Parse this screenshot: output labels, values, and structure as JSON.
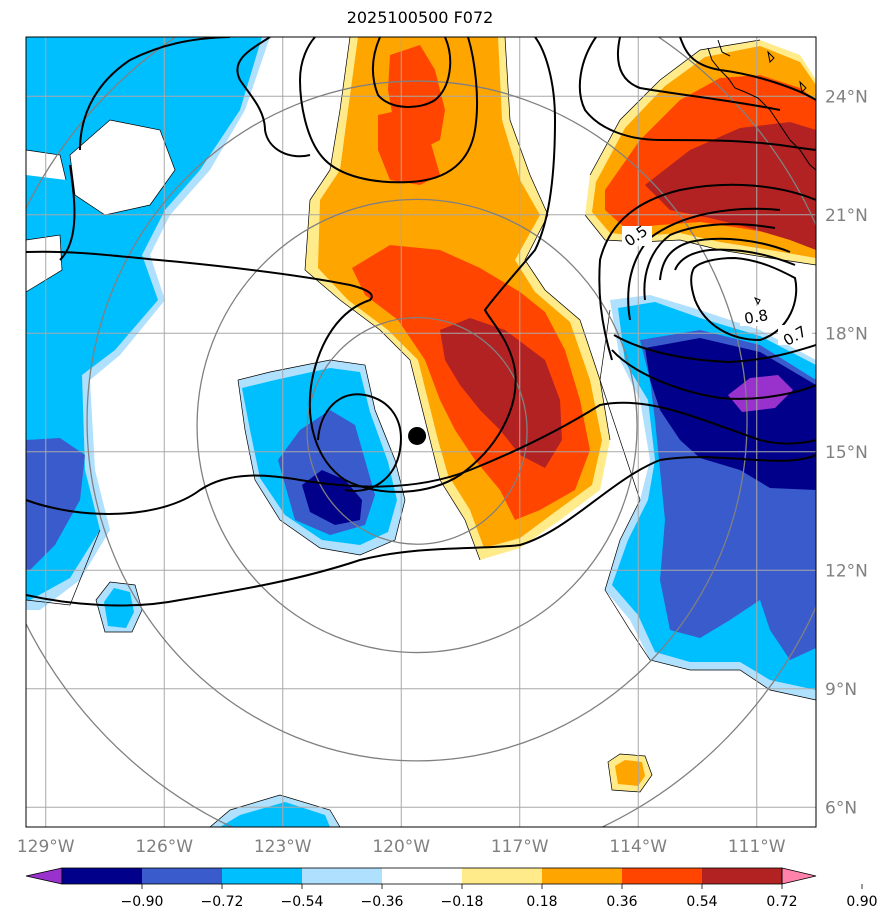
{
  "title": "2025100500 F072",
  "map": {
    "lon_labels": [
      "129°W",
      "126°W",
      "123°W",
      "120°W",
      "117°W",
      "114°W",
      "111°W"
    ],
    "lat_labels": [
      "24°N",
      "21°N",
      "18°N",
      "15°N",
      "12°N",
      "9°N",
      "6°N"
    ],
    "lon_ticks": [
      -129,
      -126,
      -123,
      -120,
      -117,
      -114,
      -111
    ],
    "lat_ticks": [
      24,
      21,
      18,
      15,
      12,
      9,
      6
    ],
    "lon_range": [
      -129.5,
      -109.5
    ],
    "lat_range": [
      5.5,
      25.5
    ],
    "center": {
      "lon": -119.6,
      "lat": 15.4
    },
    "contour_labels": [
      "0.5",
      "0.8",
      "0.7"
    ],
    "land_color": "#000000",
    "grid_color": "#a8a8a8",
    "ring_color": "#808080"
  },
  "colorbar": {
    "ticks": [
      "−0.90",
      "−0.72",
      "−0.54",
      "−0.36",
      "−0.18",
      "0.18",
      "0.36",
      "0.54",
      "0.72",
      "0.90"
    ],
    "levels": [
      -0.9,
      -0.72,
      -0.54,
      -0.36,
      -0.18,
      0.18,
      0.36,
      0.54,
      0.72,
      0.9
    ],
    "colors": [
      "#9932cc",
      "#00008b",
      "#3a5bcc",
      "#00bfff",
      "#afe0fd",
      "#ffffff",
      "#ffeb8a",
      "#ffa500",
      "#ff4500",
      "#b22222",
      "#ff82ab"
    ]
  }
}
